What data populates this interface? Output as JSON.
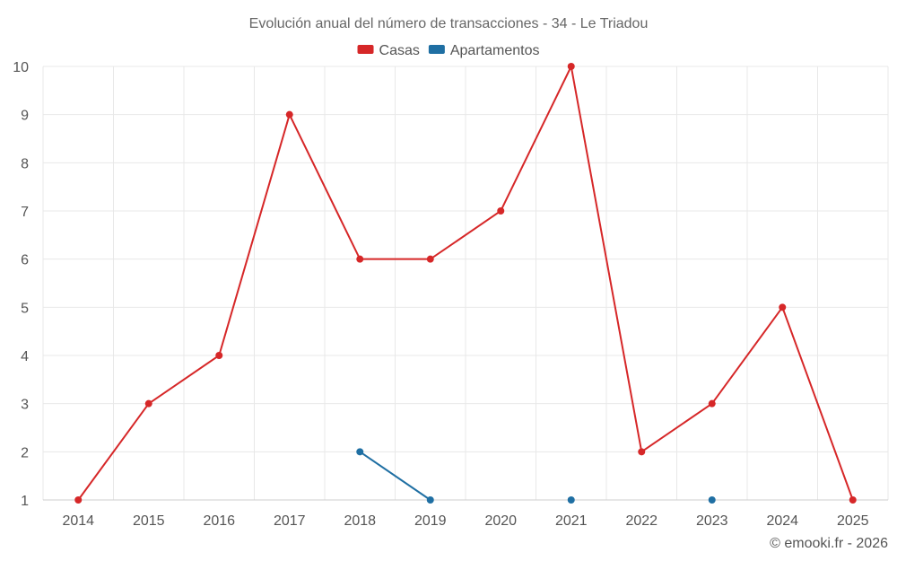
{
  "footer": "© emooki.fr - 2026",
  "chart_data": {
    "type": "line",
    "title": "Evolución anual del número de transacciones - 34 - Le Triadou",
    "xlabel": "",
    "ylabel": "",
    "categories": [
      "2014",
      "2015",
      "2016",
      "2017",
      "2018",
      "2019",
      "2020",
      "2021",
      "2022",
      "2023",
      "2024",
      "2025"
    ],
    "ylim": [
      1,
      10
    ],
    "yticks": [
      1,
      2,
      3,
      4,
      5,
      6,
      7,
      8,
      9,
      10
    ],
    "legend_position": "top-center",
    "grid": true,
    "series": [
      {
        "name": "Casas",
        "color": "#d62728",
        "values": [
          1,
          3,
          4,
          9,
          6,
          6,
          7,
          10,
          2,
          3,
          5,
          1
        ]
      },
      {
        "name": "Apartamentos",
        "color": "#1f6fa3",
        "values": [
          null,
          null,
          null,
          null,
          2,
          1,
          null,
          1,
          null,
          1,
          null,
          null
        ]
      }
    ]
  }
}
